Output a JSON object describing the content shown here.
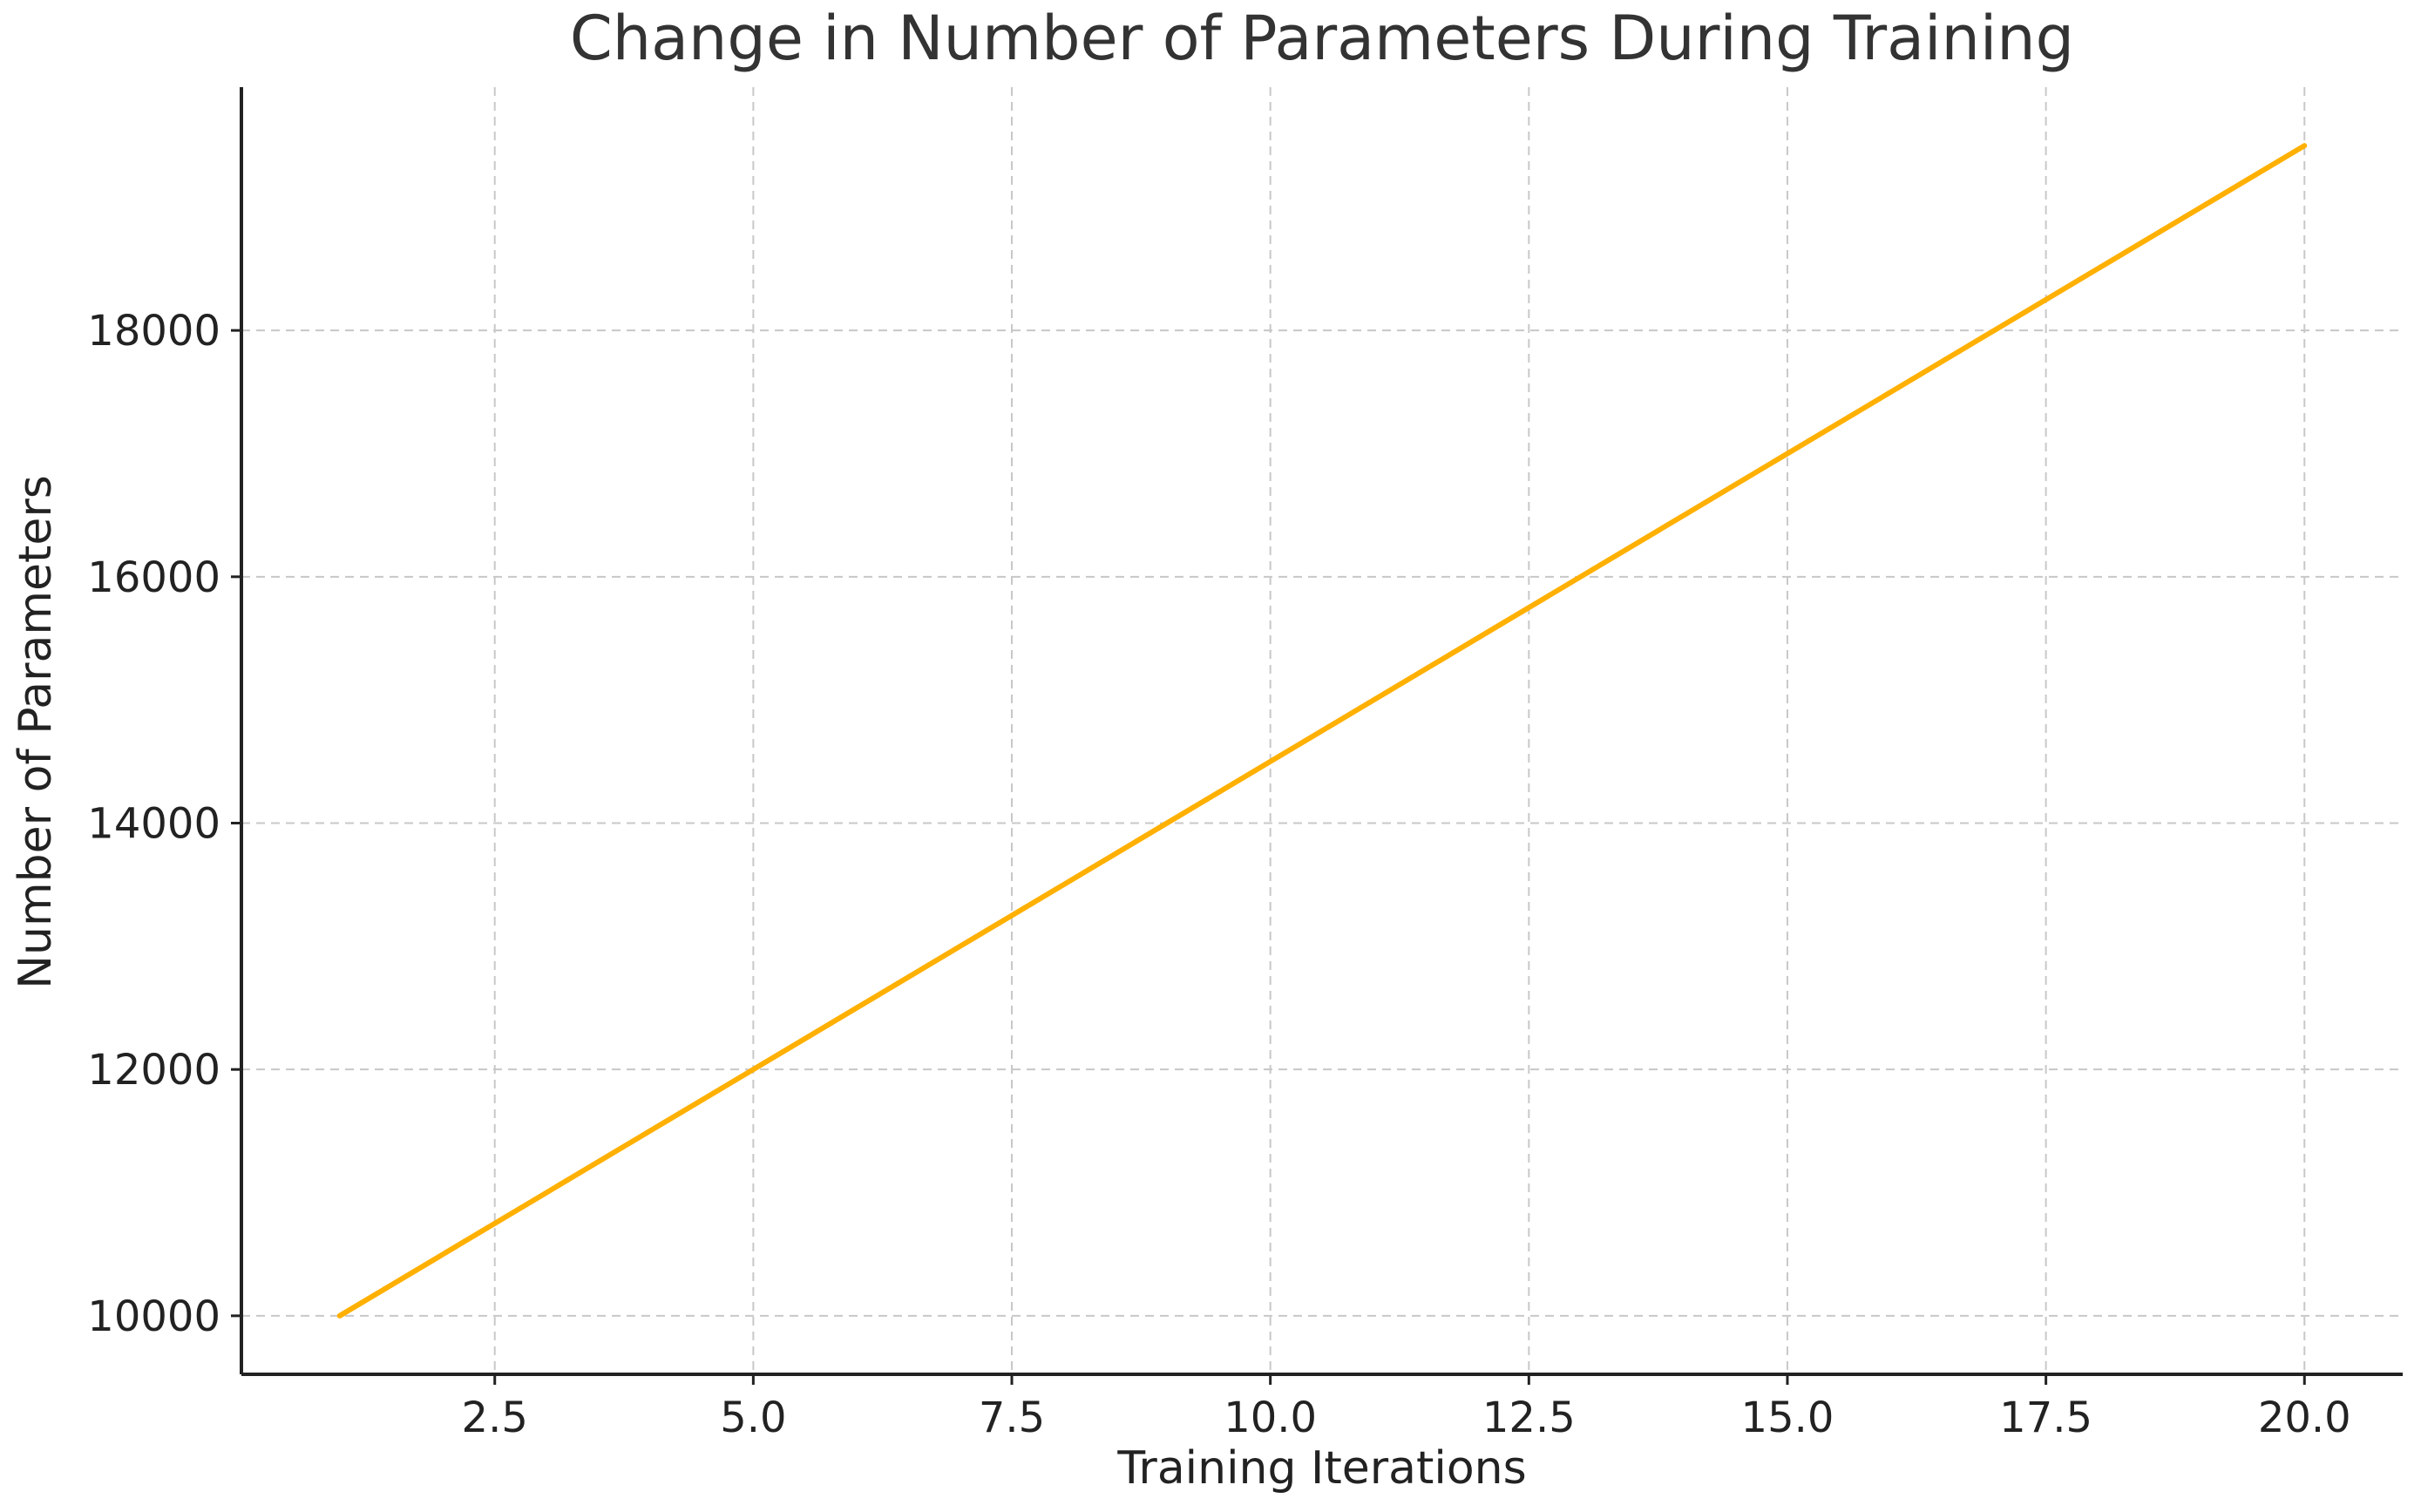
{
  "chart_data": {
    "type": "line",
    "title": "Change in Number of Parameters During Training",
    "xlabel": "Training Iterations",
    "ylabel": "Number of Parameters",
    "xlim": [
      0.05,
      20.95
    ],
    "ylim": [
      9525,
      19975
    ],
    "x_ticks": [
      2.5,
      5.0,
      7.5,
      10.0,
      12.5,
      15.0,
      17.5,
      20.0
    ],
    "x_tick_labels": [
      "2.5",
      "5.0",
      "7.5",
      "10.0",
      "12.5",
      "15.0",
      "17.5",
      "20.0"
    ],
    "y_ticks": [
      10000,
      12000,
      14000,
      16000,
      18000
    ],
    "y_tick_labels": [
      "10000",
      "12000",
      "14000",
      "16000",
      "18000"
    ],
    "grid": true,
    "series": [
      {
        "color": "#FFB000",
        "x": [
          1,
          2,
          3,
          4,
          5,
          6,
          7,
          8,
          9,
          10,
          11,
          12,
          13,
          14,
          15,
          16,
          17,
          18,
          19,
          20
        ],
        "values": [
          10000,
          10500,
          11000,
          11500,
          12000,
          12500,
          13000,
          13500,
          14000,
          14500,
          15000,
          15500,
          16000,
          16500,
          17000,
          17500,
          18000,
          18500,
          19000,
          19500
        ]
      }
    ]
  }
}
